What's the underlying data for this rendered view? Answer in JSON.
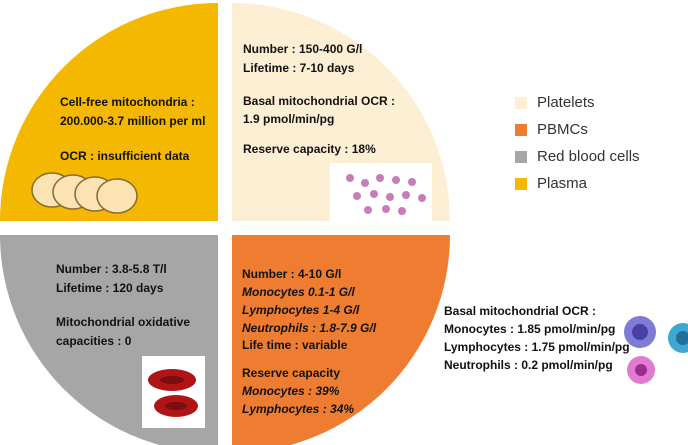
{
  "plasma": {
    "lines": [
      "Cell-free mitochondria :",
      "200.000-3.7 million per ml",
      "OCR : insufficient data"
    ]
  },
  "platelets": {
    "lines": [
      "Number : 150-400 G/l",
      "Lifetime : 7-10 days",
      "Basal mitochondrial OCR :",
      "1.9 pmol/min/pg",
      "Reserve capacity : 18%"
    ]
  },
  "red_blood_cells": {
    "lines": [
      "Number : 3.8-5.8 T/l",
      "Lifetime : 120 days",
      "Mitochondrial oxidative",
      "capacities : 0"
    ]
  },
  "pbmcs": {
    "lines": [
      "Number : 4-10 G/l",
      "Monocytes 0.1-1 G/l",
      "Lymphocytes 1-4 G/l",
      "Neutrophils : 1.8-7.9 G/l",
      "Life time : variable",
      "Reserve capacity",
      "Monocytes : 39%",
      "Lymphocytes : 34%"
    ]
  },
  "pbmc_ocr": {
    "lines": [
      "Basal mitochondrial OCR :",
      "Monocytes : 1.85 pmol/min/pg",
      "Lymphocytes : 1.75 pmol/min/pg",
      "Neutrophils : 0.2 pmol/min/pg"
    ]
  },
  "legend": [
    "Platelets",
    "PBMCs",
    "Red blood cells",
    "Plasma"
  ]
}
